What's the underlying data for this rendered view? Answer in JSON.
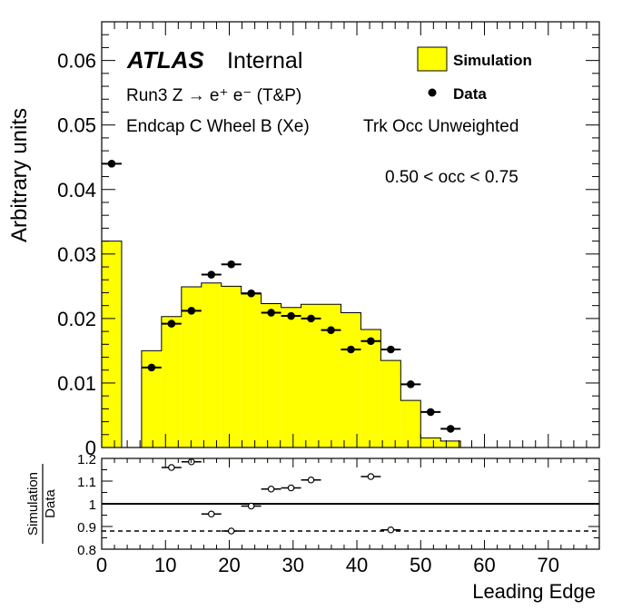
{
  "chart_data": [
    {
      "type": "histogram",
      "atlas_label": "ATLAS",
      "atlas_status": "Internal",
      "annotations": [
        "Run3 Z → e⁺ e⁻ (T&P)",
        "Endcap C Wheel B (Xe)",
        "Trk Occ Unweighted",
        "0.50 < occ < 0.75"
      ],
      "xlabel": "Leading Edge",
      "ylabel": "Arbitrary units",
      "xlim": [
        0,
        78
      ],
      "ylim": [
        0,
        0.066
      ],
      "x_ticks": [
        0,
        10,
        20,
        30,
        40,
        50,
        60,
        70
      ],
      "y_ticks": [
        0,
        0.01,
        0.02,
        0.03,
        0.04,
        0.05,
        0.06
      ],
      "y_tick_labels": [
        "0",
        "0.01",
        "0.02",
        "0.03",
        "0.04",
        "0.05",
        "0.06"
      ],
      "legend_position": "top-right",
      "series": [
        {
          "name": "Simulation",
          "style": "filled-step",
          "color": "#ffff00",
          "bins": [
            {
              "x0": 0.0,
              "x1": 3.125,
              "y": 0.032
            },
            {
              "x0": 3.125,
              "x1": 6.25,
              "y": 0.0
            },
            {
              "x0": 6.25,
              "x1": 9.375,
              "y": 0.015
            },
            {
              "x0": 9.375,
              "x1": 12.5,
              "y": 0.0203
            },
            {
              "x0": 12.5,
              "x1": 15.625,
              "y": 0.0249
            },
            {
              "x0": 15.625,
              "x1": 18.75,
              "y": 0.0255
            },
            {
              "x0": 18.75,
              "x1": 21.875,
              "y": 0.025
            },
            {
              "x0": 21.875,
              "x1": 25.0,
              "y": 0.0238
            },
            {
              "x0": 25.0,
              "x1": 28.125,
              "y": 0.0223
            },
            {
              "x0": 28.125,
              "x1": 31.25,
              "y": 0.0217
            },
            {
              "x0": 31.25,
              "x1": 34.375,
              "y": 0.0222
            },
            {
              "x0": 34.375,
              "x1": 37.5,
              "y": 0.0222
            },
            {
              "x0": 37.5,
              "x1": 40.625,
              "y": 0.0209
            },
            {
              "x0": 40.625,
              "x1": 43.75,
              "y": 0.0183
            },
            {
              "x0": 43.75,
              "x1": 46.875,
              "y": 0.0135
            },
            {
              "x0": 46.875,
              "x1": 50.0,
              "y": 0.0073
            },
            {
              "x0": 50.0,
              "x1": 53.125,
              "y": 0.0015
            },
            {
              "x0": 53.125,
              "x1": 56.25,
              "y": 0.001
            }
          ]
        },
        {
          "name": "Data",
          "style": "points",
          "color": "#000000",
          "points": [
            {
              "x": 1.5625,
              "y": 0.044
            },
            {
              "x": 7.8125,
              "y": 0.0124
            },
            {
              "x": 10.9375,
              "y": 0.0192
            },
            {
              "x": 14.0625,
              "y": 0.0212
            },
            {
              "x": 17.1875,
              "y": 0.0268
            },
            {
              "x": 20.3125,
              "y": 0.0284
            },
            {
              "x": 23.4375,
              "y": 0.0239
            },
            {
              "x": 26.5625,
              "y": 0.0209
            },
            {
              "x": 29.6875,
              "y": 0.0204
            },
            {
              "x": 32.8125,
              "y": 0.02
            },
            {
              "x": 35.9375,
              "y": 0.0182
            },
            {
              "x": 39.0625,
              "y": 0.0152
            },
            {
              "x": 42.1875,
              "y": 0.0165
            },
            {
              "x": 45.3125,
              "y": 0.0152
            },
            {
              "x": 48.4375,
              "y": 0.0098
            },
            {
              "x": 51.5625,
              "y": 0.0055
            },
            {
              "x": 54.6875,
              "y": 0.0029
            }
          ]
        }
      ]
    },
    {
      "type": "scatter",
      "ylabel_numerator": "Simulation",
      "ylabel_denominator": "Data",
      "xlabel": "Leading Edge",
      "xlim": [
        0,
        78
      ],
      "ylim": [
        0.8,
        1.2
      ],
      "x_ticks": [
        0,
        10,
        20,
        30,
        40,
        50,
        60,
        70
      ],
      "y_ticks": [
        0.8,
        0.9,
        1.0,
        1.1,
        1.2
      ],
      "y_tick_labels": [
        "0.8",
        "0.9",
        "1",
        "1.1",
        "1.2"
      ],
      "reference_lines": [
        {
          "y": 1.0,
          "style": "solid"
        },
        {
          "y": 0.88,
          "style": "dashed"
        }
      ],
      "points": [
        {
          "x": 10.9375,
          "y": 1.16
        },
        {
          "x": 14.0625,
          "y": 1.185
        },
        {
          "x": 17.1875,
          "y": 0.955
        },
        {
          "x": 20.3125,
          "y": 0.88
        },
        {
          "x": 23.4375,
          "y": 0.99
        },
        {
          "x": 26.5625,
          "y": 1.065
        },
        {
          "x": 29.6875,
          "y": 1.07
        },
        {
          "x": 32.8125,
          "y": 1.105
        },
        {
          "x": 42.1875,
          "y": 1.12
        },
        {
          "x": 45.3125,
          "y": 0.885
        }
      ]
    }
  ]
}
